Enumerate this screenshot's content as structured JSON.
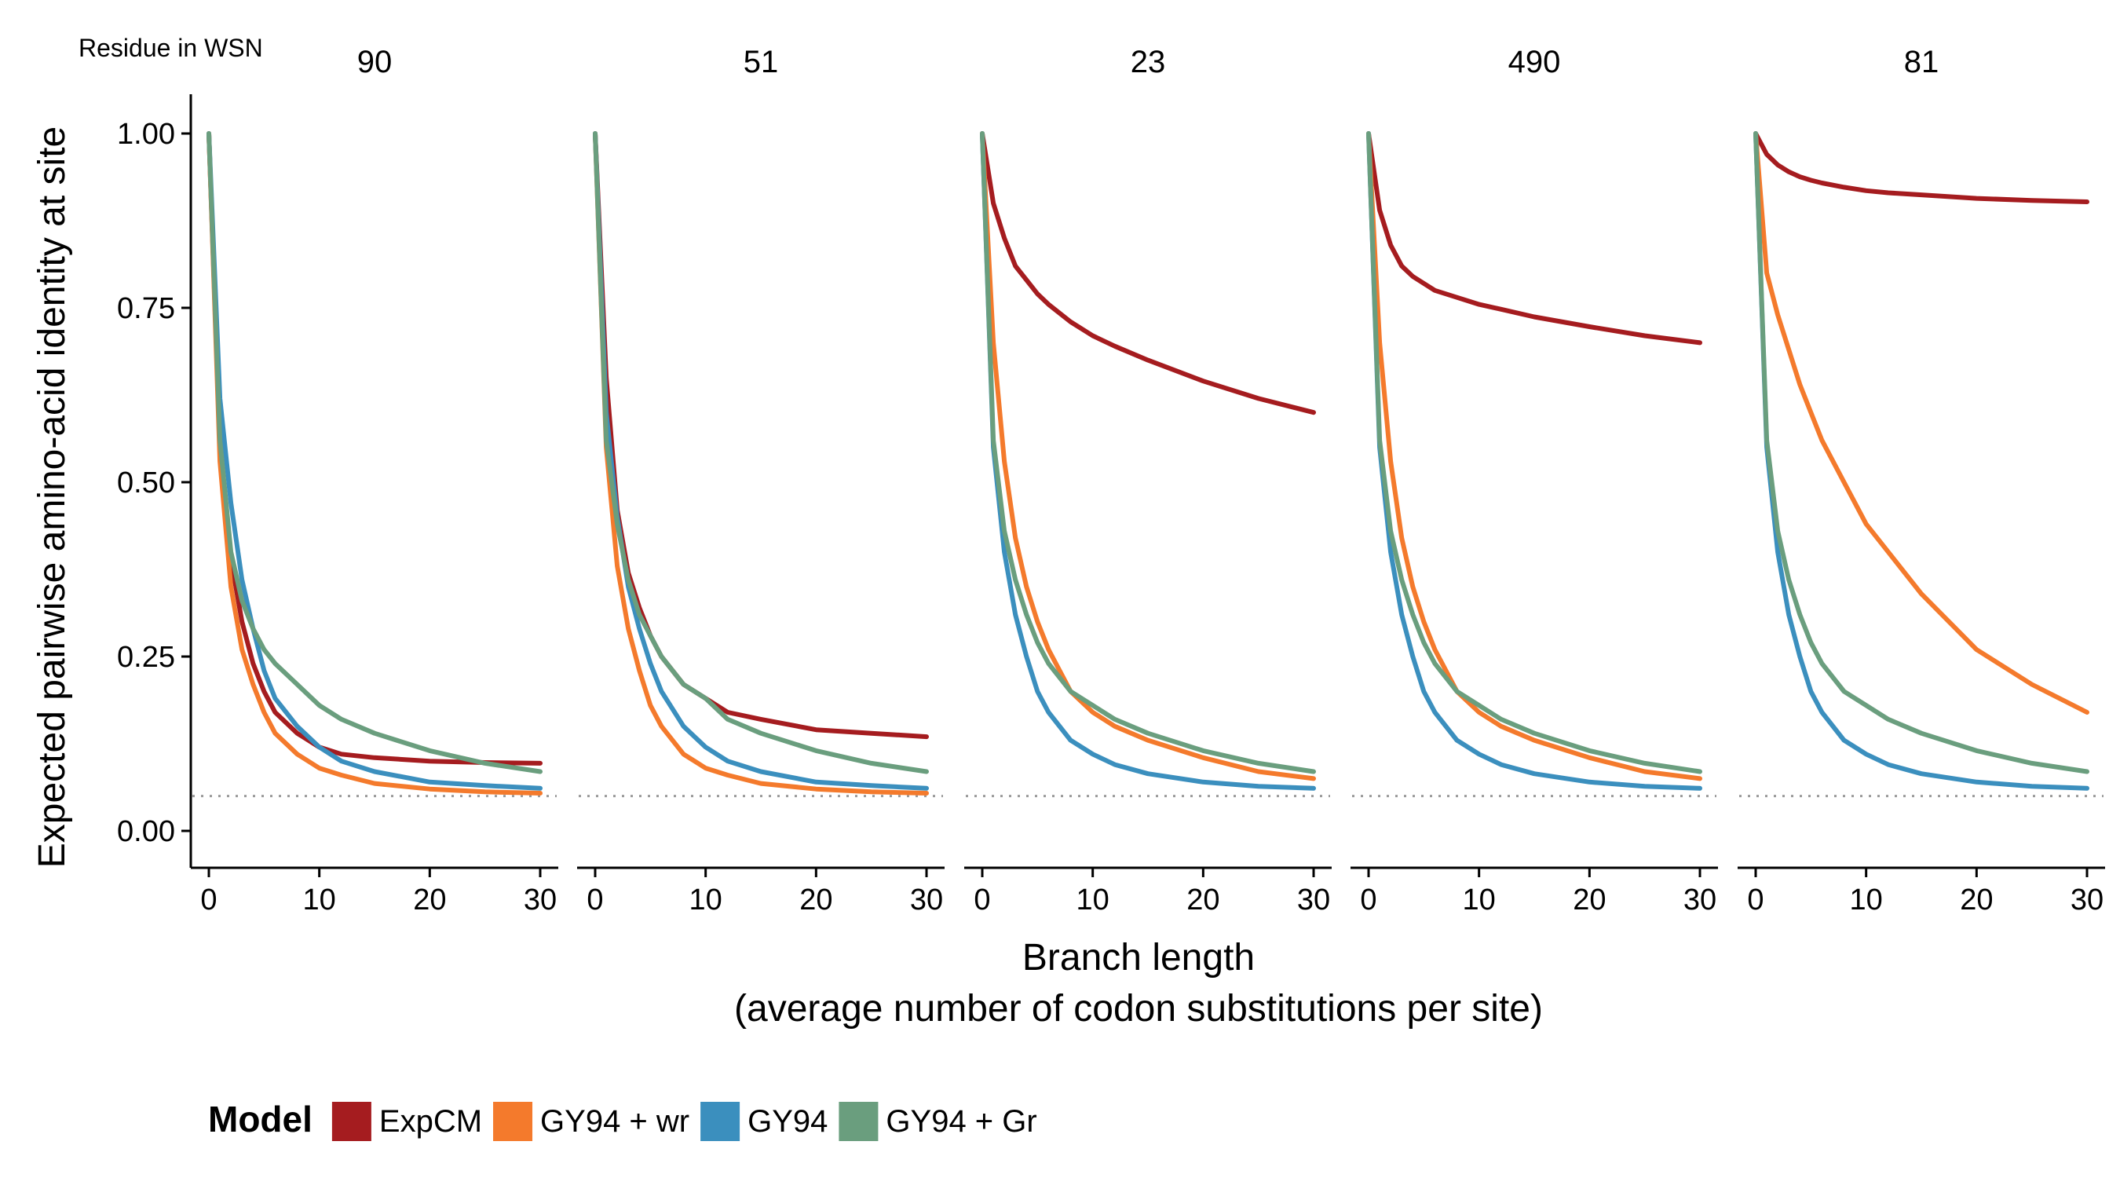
{
  "chart_data": {
    "type": "line",
    "facet_label": "Residue in WSN",
    "ylabel": "Expected pairwise amino-acid identity at site",
    "xlabel": "Branch length",
    "xlabel_sub": "(average number of codon substitutions per site)",
    "xlim": [
      0,
      30
    ],
    "ylim": [
      0,
      1
    ],
    "x_ticks": [
      "0",
      "10",
      "20",
      "30"
    ],
    "y_ticks": [
      "0.00",
      "0.25",
      "0.50",
      "0.75",
      "1.00"
    ],
    "reference_line": 0.05,
    "legend": {
      "title": "Model",
      "position": "bottom",
      "entries": [
        {
          "label": "ExpCM",
          "color": "#A51C1F"
        },
        {
          "label": "GY94 + wr",
          "color": "#F47A2C"
        },
        {
          "label": "GY94",
          "color": "#3B8FBE"
        },
        {
          "label": "GY94 + Gr",
          "color": "#6A9E7E"
        }
      ]
    },
    "x": [
      0,
      1,
      2,
      3,
      4,
      5,
      6,
      8,
      10,
      12,
      15,
      20,
      25,
      30
    ],
    "facets": [
      {
        "title": "90",
        "series": [
          {
            "name": "ExpCM",
            "values": [
              1.0,
              0.55,
              0.39,
              0.3,
              0.24,
              0.2,
              0.17,
              0.14,
              0.12,
              0.11,
              0.105,
              0.1,
              0.098,
              0.097
            ]
          },
          {
            "name": "GY94 + wr",
            "values": [
              1.0,
              0.53,
              0.35,
              0.26,
              0.21,
              0.17,
              0.14,
              0.11,
              0.09,
              0.08,
              0.068,
              0.06,
              0.056,
              0.054
            ]
          },
          {
            "name": "GY94",
            "values": [
              1.0,
              0.62,
              0.47,
              0.36,
              0.29,
              0.23,
              0.19,
              0.15,
              0.12,
              0.1,
              0.085,
              0.07,
              0.065,
              0.061
            ]
          },
          {
            "name": "GY94 + Gr",
            "values": [
              1.0,
              0.56,
              0.4,
              0.33,
              0.29,
              0.26,
              0.24,
              0.21,
              0.18,
              0.16,
              0.14,
              0.115,
              0.097,
              0.085
            ]
          }
        ]
      },
      {
        "title": "51",
        "series": [
          {
            "name": "ExpCM",
            "values": [
              1.0,
              0.65,
              0.46,
              0.37,
              0.32,
              0.28,
              0.25,
              0.21,
              0.19,
              0.17,
              0.16,
              0.145,
              0.14,
              0.135
            ]
          },
          {
            "name": "GY94 + wr",
            "values": [
              1.0,
              0.55,
              0.38,
              0.29,
              0.23,
              0.18,
              0.15,
              0.11,
              0.09,
              0.08,
              0.068,
              0.06,
              0.056,
              0.054
            ]
          },
          {
            "name": "GY94",
            "values": [
              1.0,
              0.6,
              0.45,
              0.35,
              0.29,
              0.24,
              0.2,
              0.15,
              0.12,
              0.1,
              0.085,
              0.07,
              0.065,
              0.061
            ]
          },
          {
            "name": "GY94 + Gr",
            "values": [
              1.0,
              0.56,
              0.44,
              0.36,
              0.31,
              0.28,
              0.25,
              0.21,
              0.19,
              0.16,
              0.14,
              0.115,
              0.097,
              0.085
            ]
          }
        ]
      },
      {
        "title": "23",
        "series": [
          {
            "name": "ExpCM",
            "values": [
              1.0,
              0.9,
              0.85,
              0.81,
              0.79,
              0.77,
              0.755,
              0.73,
              0.71,
              0.695,
              0.675,
              0.645,
              0.62,
              0.6
            ]
          },
          {
            "name": "GY94 + wr",
            "values": [
              1.0,
              0.7,
              0.53,
              0.42,
              0.35,
              0.3,
              0.26,
              0.2,
              0.17,
              0.15,
              0.13,
              0.105,
              0.085,
              0.075
            ]
          },
          {
            "name": "GY94",
            "values": [
              1.0,
              0.55,
              0.4,
              0.31,
              0.25,
              0.2,
              0.17,
              0.13,
              0.11,
              0.095,
              0.082,
              0.07,
              0.064,
              0.061
            ]
          },
          {
            "name": "GY94 + Gr",
            "values": [
              1.0,
              0.56,
              0.43,
              0.36,
              0.31,
              0.27,
              0.24,
              0.2,
              0.18,
              0.16,
              0.14,
              0.115,
              0.097,
              0.085
            ]
          }
        ]
      },
      {
        "title": "490",
        "series": [
          {
            "name": "ExpCM",
            "values": [
              1.0,
              0.89,
              0.84,
              0.81,
              0.795,
              0.785,
              0.775,
              0.765,
              0.755,
              0.748,
              0.737,
              0.723,
              0.71,
              0.7
            ]
          },
          {
            "name": "GY94 + wr",
            "values": [
              1.0,
              0.7,
              0.53,
              0.42,
              0.35,
              0.3,
              0.26,
              0.2,
              0.17,
              0.15,
              0.13,
              0.105,
              0.085,
              0.075
            ]
          },
          {
            "name": "GY94",
            "values": [
              1.0,
              0.55,
              0.4,
              0.31,
              0.25,
              0.2,
              0.17,
              0.13,
              0.11,
              0.095,
              0.082,
              0.07,
              0.064,
              0.061
            ]
          },
          {
            "name": "GY94 + Gr",
            "values": [
              1.0,
              0.56,
              0.43,
              0.36,
              0.31,
              0.27,
              0.24,
              0.2,
              0.18,
              0.16,
              0.14,
              0.115,
              0.097,
              0.085
            ]
          }
        ]
      },
      {
        "title": "81",
        "series": [
          {
            "name": "ExpCM",
            "values": [
              1.0,
              0.97,
              0.955,
              0.945,
              0.938,
              0.933,
              0.929,
              0.923,
              0.918,
              0.915,
              0.912,
              0.907,
              0.904,
              0.902
            ]
          },
          {
            "name": "GY94 + wr",
            "values": [
              1.0,
              0.8,
              0.74,
              0.69,
              0.64,
              0.6,
              0.56,
              0.5,
              0.44,
              0.4,
              0.34,
              0.26,
              0.21,
              0.17
            ]
          },
          {
            "name": "GY94",
            "values": [
              1.0,
              0.55,
              0.4,
              0.31,
              0.25,
              0.2,
              0.17,
              0.13,
              0.11,
              0.095,
              0.082,
              0.07,
              0.064,
              0.061
            ]
          },
          {
            "name": "GY94 + Gr",
            "values": [
              1.0,
              0.56,
              0.43,
              0.36,
              0.31,
              0.27,
              0.24,
              0.2,
              0.18,
              0.16,
              0.14,
              0.115,
              0.097,
              0.085
            ]
          }
        ]
      }
    ]
  }
}
